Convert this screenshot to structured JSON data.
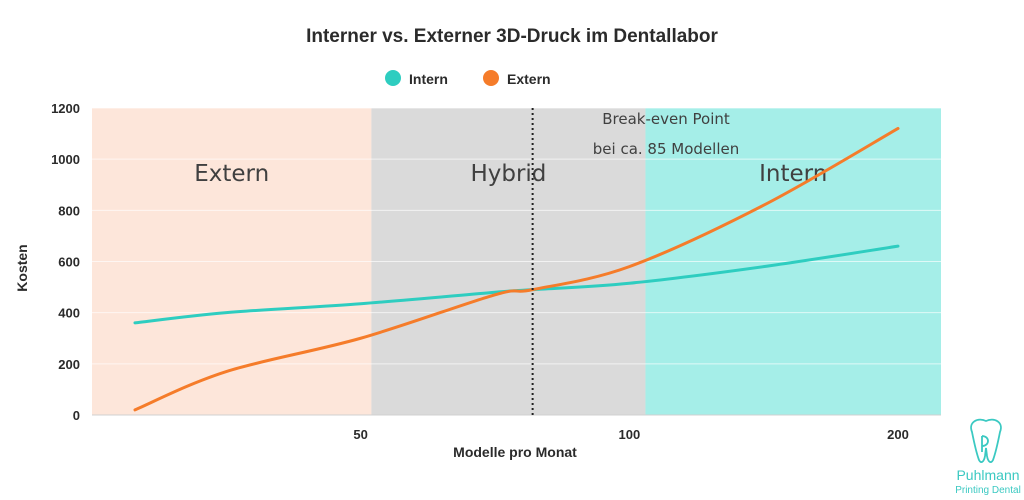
{
  "chart_data": {
    "type": "line",
    "title": "Interner vs. Externer 3D-Druck im Dentallabor",
    "xlabel": "Modelle pro Monat",
    "ylabel": "Kosten",
    "x_tick_labels": [
      "50",
      "100",
      "200"
    ],
    "y_ticks": [
      0,
      200,
      400,
      600,
      800,
      1000,
      1200
    ],
    "ylim": [
      0,
      1200
    ],
    "grid": true,
    "legend_position": "top-center",
    "series": [
      {
        "name": "Intern",
        "color": "#2ecdc0",
        "points": [
          [
            0.08,
            360
          ],
          [
            0.25,
            400
          ],
          [
            0.5,
            435
          ],
          [
            0.75,
            480
          ],
          [
            0.82,
            490
          ],
          [
            1.0,
            515
          ],
          [
            1.25,
            580
          ],
          [
            1.5,
            660
          ]
        ]
      },
      {
        "name": "Extern",
        "color": "#f57c2a",
        "points": [
          [
            0.08,
            20
          ],
          [
            0.25,
            170
          ],
          [
            0.5,
            300
          ],
          [
            0.75,
            470
          ],
          [
            0.82,
            490
          ],
          [
            1.0,
            580
          ],
          [
            1.25,
            820
          ],
          [
            1.5,
            1120
          ]
        ]
      }
    ],
    "zones": [
      {
        "label": "Extern",
        "color": "#fde6da",
        "from": 0.0,
        "to": 0.52
      },
      {
        "label": "Hybrid",
        "color": "#dadada",
        "from": 0.52,
        "to": 1.03
      },
      {
        "label": "Intern",
        "color": "#a5eee8",
        "from": 1.03,
        "to": 1.58
      }
    ],
    "break_even": {
      "x": 0.82,
      "line1": "Break-even Point",
      "line2": "bei ca. 85 Modellen"
    }
  },
  "logo": {
    "name": "Puhlmann",
    "tagline": "Printing Dental"
  }
}
